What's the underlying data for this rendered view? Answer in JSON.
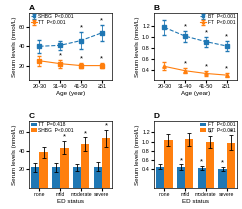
{
  "chart_data": [
    {
      "type": "line",
      "title": "A",
      "categories": [
        "20-30",
        "31-40",
        "41-50",
        "≥51"
      ],
      "x_label": "Age (year)",
      "y_label": "Serum levels (nmol/L)",
      "ylim": [
        5,
        75
      ],
      "yticks": [
        20,
        40,
        60
      ],
      "legend": "upper left",
      "series": [
        {
          "name": "SHBG  P<0.001",
          "marker": "square",
          "line_style": "dashed",
          "values": [
            40,
            41,
            46,
            54
          ],
          "errors": [
            7,
            5,
            9,
            8
          ],
          "annotations": [
            null,
            null,
            "*",
            "*"
          ]
        },
        {
          "name": "TT  P<0.001",
          "marker": "square",
          "line_style": "solid",
          "values": [
            25,
            22,
            20,
            20
          ],
          "errors": [
            5,
            4,
            3,
            3
          ],
          "annotations": [
            null,
            "*",
            "*",
            "*"
          ]
        }
      ]
    },
    {
      "type": "line",
      "title": "B",
      "categories": [
        "20-30",
        "31-40",
        "41-50",
        "≥51"
      ],
      "x_label": "Age (year)",
      "y_label": "Serum levels (nmol/L)",
      "ylim": [
        0.22,
        1.45
      ],
      "yticks": [
        0.4,
        0.6,
        0.8,
        {
          "value": 1.0,
          "label": "1.0"
        },
        1.2
      ],
      "legend": "upper right",
      "series": [
        {
          "name": "BT  P<0.001",
          "marker": "square",
          "line_style": "dashed",
          "values": [
            1.18,
            1.02,
            0.92,
            0.84
          ],
          "errors": [
            0.14,
            0.1,
            0.09,
            0.09
          ],
          "annotations": [
            null,
            "*",
            "*",
            "*"
          ]
        },
        {
          "name": "FT  P<0.001",
          "marker": "triangle",
          "line_style": "solid",
          "values": [
            0.47,
            0.39,
            0.34,
            0.31
          ],
          "errors": [
            0.07,
            0.05,
            0.04,
            0.04
          ],
          "annotations": [
            null,
            "*",
            "*",
            "*"
          ]
        }
      ]
    },
    {
      "type": "bar",
      "title": "C",
      "categories": [
        "none",
        "mild",
        "moderate",
        "severe"
      ],
      "x_label": "ED status",
      "y_label": "Serum levels (nmol/L)",
      "ylim": [
        0,
        72
      ],
      "yticks": [
        20,
        40,
        60
      ],
      "legend": "upper left",
      "series": [
        {
          "name": "TT  P=0.418",
          "values": [
            22,
            22,
            22,
            23
          ],
          "errors": [
            5,
            5,
            4,
            5
          ]
        },
        {
          "name": "SHBG  P<0.001",
          "values": [
            38,
            43,
            47,
            53
          ],
          "errors": [
            6,
            7,
            7,
            9
          ],
          "annotations": [
            null,
            "*",
            "*",
            "*"
          ]
        }
      ]
    },
    {
      "type": "bar",
      "title": "D",
      "categories": [
        "none",
        "mild",
        "moderate",
        "severe"
      ],
      "x_label": "ED status",
      "y_label": "Serum levels (nmol/L)",
      "ylim": [
        0.0,
        1.45
      ],
      "yticks": [
        0.4,
        0.6,
        0.8,
        {
          "value": 1.0,
          "label": "1.0"
        },
        1.2
      ],
      "legend": "upper right",
      "series": [
        {
          "name": "FT  P<0.001",
          "values": [
            0.46,
            0.45,
            0.43,
            0.41
          ],
          "errors": [
            0.06,
            0.06,
            0.05,
            0.05
          ],
          "annotations": [
            null,
            "*",
            "*",
            "*"
          ]
        },
        {
          "name": "BT  P<0.001",
          "values": [
            1.03,
            1.05,
            0.99,
            0.97
          ],
          "errors": [
            0.13,
            0.14,
            0.12,
            0.16
          ],
          "annotations": [
            null,
            null,
            "*",
            "*"
          ]
        }
      ]
    }
  ]
}
